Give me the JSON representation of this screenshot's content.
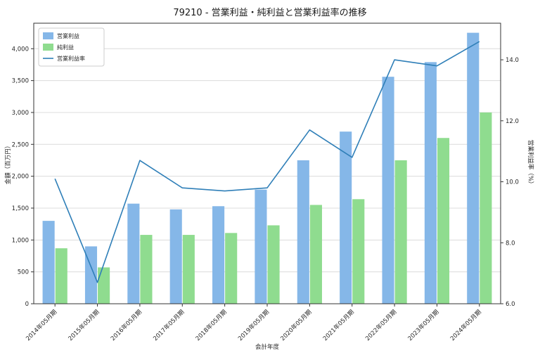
{
  "chart_data": {
    "type": "bar",
    "title": "79210 - 営業利益・純利益と営業利益率の推移",
    "xlabel": "会計年度",
    "ylabel_left": "金額（百万円）",
    "ylabel_right": "営業利益率（%）",
    "categories": [
      "2014年05月期",
      "2015年05月期",
      "2016年05月期",
      "2017年05月期",
      "2018年05月期",
      "2019年05月期",
      "2020年05月期",
      "2021年05月期",
      "2022年05月期",
      "2023年05月期",
      "2024年05月期"
    ],
    "series": [
      {
        "name": "営業利益",
        "type": "bar",
        "axis": "left",
        "color": "#85b7e8",
        "values": [
          1300,
          900,
          1570,
          1480,
          1530,
          1790,
          2250,
          2700,
          3560,
          3790,
          4250
        ]
      },
      {
        "name": "純利益",
        "type": "bar",
        "axis": "left",
        "color": "#8fdc8f",
        "values": [
          870,
          570,
          1080,
          1080,
          1110,
          1230,
          1550,
          1640,
          2250,
          2600,
          3000
        ]
      },
      {
        "name": "営業利益率",
        "type": "line",
        "axis": "right",
        "color": "#2f7fb8",
        "values": [
          10.1,
          6.7,
          10.7,
          9.8,
          9.7,
          9.8,
          11.7,
          10.8,
          14.0,
          13.8,
          14.6
        ]
      }
    ],
    "ylim_left": [
      0,
      4400
    ],
    "ylim_right": [
      6,
      15.2
    ],
    "yticks_left": {
      "values": [
        0,
        500,
        1000,
        1500,
        2000,
        2500,
        3000,
        3500,
        4000
      ],
      "labels": [
        "0",
        "500",
        "1,000",
        "1,500",
        "2,000",
        "2,500",
        "3,000",
        "3,500",
        "4,000"
      ]
    },
    "yticks_right": {
      "values": [
        6,
        8,
        10,
        12,
        14
      ],
      "labels": [
        "6.0",
        "8.0",
        "10.0",
        "12.0",
        "14.0"
      ]
    },
    "grid": "horizontal",
    "legend_position": "upper-left",
    "colors": {
      "grid": "#dcdcdc",
      "spine": "#333333",
      "legend_border": "#cccccc",
      "background": "#ffffff"
    }
  }
}
